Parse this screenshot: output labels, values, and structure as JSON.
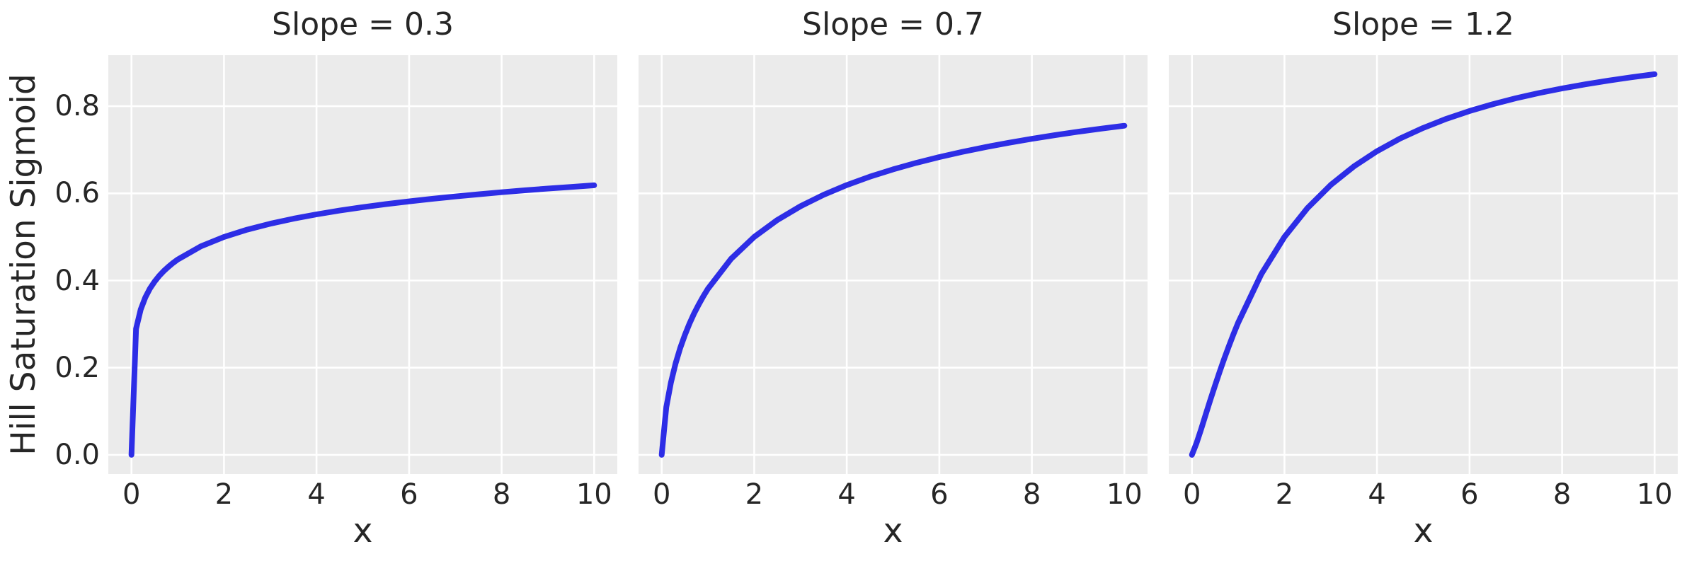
{
  "figure": {
    "background": "#ffffff",
    "axes_background": "#ebebeb",
    "grid_color": "#ffffff",
    "text_color": "#262626",
    "line_color": "#2d2de6"
  },
  "chart_data": {
    "type": "line",
    "ylabel": "Hill Saturation Sigmoid",
    "xlabel": "x",
    "grid": true,
    "legend": "none",
    "xlim": [
      -0.5,
      10.5
    ],
    "ylim": [
      -0.044,
      0.917
    ],
    "x_ticks": [
      0,
      2,
      4,
      6,
      8,
      10
    ],
    "x_tick_labels": [
      "0",
      "2",
      "4",
      "6",
      "8",
      "10"
    ],
    "y_ticks": [
      0.0,
      0.2,
      0.4,
      0.6,
      0.8
    ],
    "y_tick_labels": [
      "0.0",
      "0.2",
      "0.4",
      "0.6",
      "0.8"
    ],
    "x": [
      0,
      0.1,
      0.2,
      0.3,
      0.4,
      0.5,
      0.6,
      0.7,
      0.8,
      0.9,
      1,
      1.5,
      2,
      2.5,
      3,
      3.5,
      4,
      4.5,
      5,
      5.5,
      6,
      6.5,
      7,
      7.5,
      8,
      8.5,
      9,
      9.5,
      10
    ],
    "panels": [
      {
        "title": "Slope = 0.3",
        "slope": "0.3",
        "values": [
          0,
          0.2893,
          0.3338,
          0.3614,
          0.3816,
          0.3975,
          0.4107,
          0.4219,
          0.4317,
          0.4404,
          0.4482,
          0.4784,
          0.5,
          0.5167,
          0.5304,
          0.5419,
          0.5518,
          0.5605,
          0.5683,
          0.5753,
          0.5816,
          0.5875,
          0.5929,
          0.5979,
          0.6025,
          0.6069,
          0.611,
          0.6148,
          0.6184
        ]
      },
      {
        "title": "Slope = 0.7",
        "slope": "0.7",
        "values": [
          0,
          0.1094,
          0.1663,
          0.2095,
          0.2448,
          0.2748,
          0.301,
          0.3241,
          0.3449,
          0.3638,
          0.381,
          0.4498,
          0.5,
          0.539,
          0.5705,
          0.5967,
          0.619,
          0.6382,
          0.655,
          0.67,
          0.6833,
          0.6953,
          0.7062,
          0.7161,
          0.7252,
          0.7336,
          0.7413,
          0.7485,
          0.7552
        ]
      },
      {
        "title": "Slope = 1.2",
        "slope": "1.2",
        "values": [
          0,
          0.0267,
          0.0593,
          0.0931,
          0.1266,
          0.1593,
          0.1908,
          0.221,
          0.2498,
          0.2772,
          0.3033,
          0.4146,
          0.5,
          0.5665,
          0.6193,
          0.6618,
          0.6967,
          0.7258,
          0.7502,
          0.771,
          0.7889,
          0.8044,
          0.8181,
          0.8301,
          0.8407,
          0.8502,
          0.8588,
          0.8664,
          0.8734
        ]
      }
    ]
  }
}
